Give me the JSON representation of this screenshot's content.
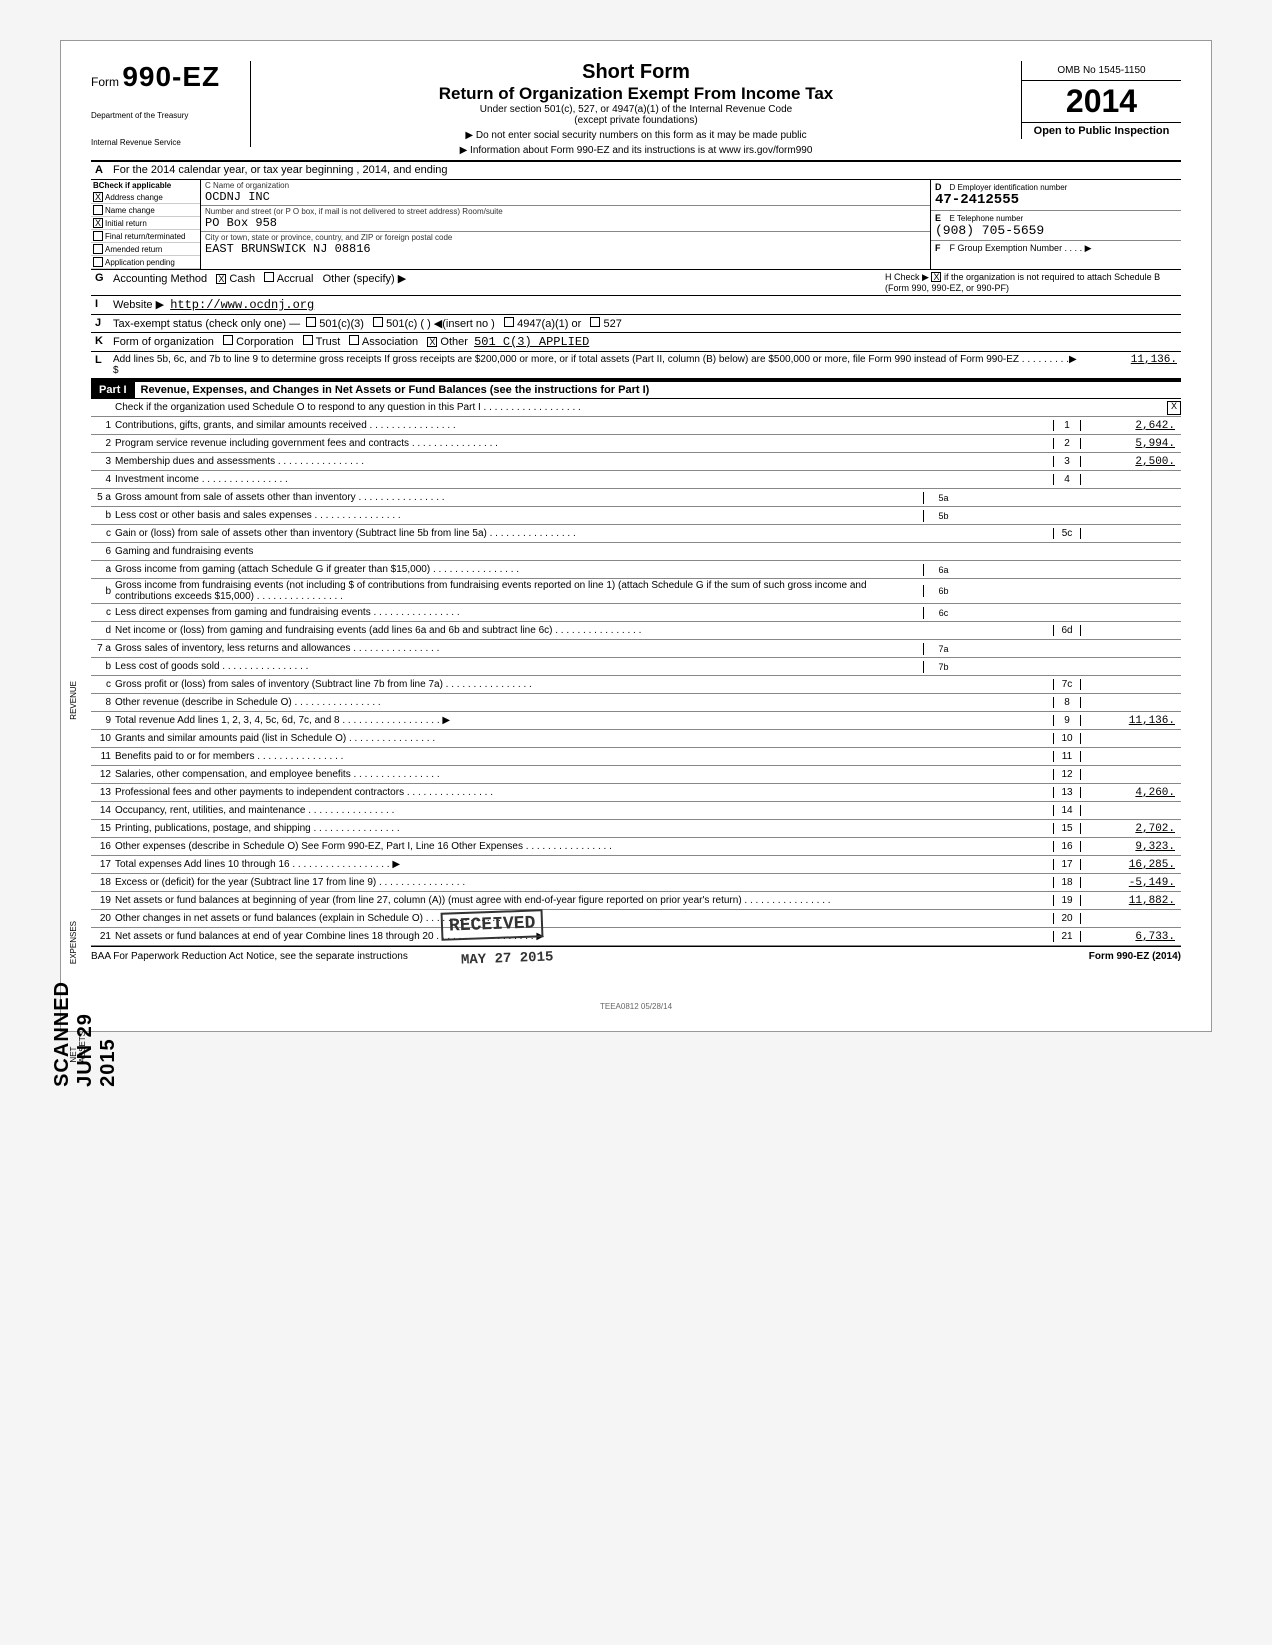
{
  "header": {
    "form_word": "Form",
    "form_number": "990-EZ",
    "dept1": "Department of the Treasury",
    "dept2": "Internal Revenue Service",
    "title_short": "Short Form",
    "title_main": "Return of Organization Exempt From Income Tax",
    "subtitle1": "Under section 501(c), 527, or 4947(a)(1) of the Internal Revenue Code",
    "subtitle2": "(except private foundations)",
    "arrow1": "▶ Do not enter social security numbers on this form as it may be made public",
    "arrow2": "▶ Information about Form 990-EZ and its instructions is at www irs.gov/form990",
    "omb": "OMB No 1545-1150",
    "year": "2014",
    "open_public": "Open to Public Inspection"
  },
  "lineA": "For the 2014 calendar year, or tax year beginning                              , 2014, and ending",
  "sectionB": {
    "header": "Check if applicable",
    "items": [
      {
        "checked": "X",
        "label": "Address change"
      },
      {
        "checked": "",
        "label": "Name change"
      },
      {
        "checked": "X",
        "label": "Initial return"
      },
      {
        "checked": "",
        "label": "Final return/terminated"
      },
      {
        "checked": "",
        "label": "Amended return"
      },
      {
        "checked": "",
        "label": "Application pending"
      }
    ]
  },
  "sectionC": {
    "name_label": "C  Name of organization",
    "name": "OCDNJ INC",
    "addr_label": "Number and street (or P O box, if mail is not delivered to street address)                Room/suite",
    "addr": "PO Box 958",
    "city_label": "City or town, state or province, country, and ZIP or foreign postal code",
    "city": "EAST BRUNSWICK                                  NJ   08816"
  },
  "sectionD": {
    "label": "D  Employer identification number",
    "value": "47-2412555"
  },
  "sectionE": {
    "label": "E  Telephone number",
    "value": "(908) 705-5659"
  },
  "sectionF": {
    "label": "F  Group Exemption Number . . . . ▶",
    "value": ""
  },
  "lineG": {
    "label": "Accounting Method",
    "cash_chk": "X",
    "cash": "Cash",
    "accrual_chk": "",
    "accrual": "Accrual",
    "other": "Other (specify) ▶"
  },
  "lineH": {
    "text": "H  Check ▶",
    "chk": "X",
    "rest": "if the organization is not required to attach Schedule B (Form 990, 990-EZ, or 990-PF)"
  },
  "lineI": {
    "label": "Website ▶",
    "value": "http://www.ocdnj.org"
  },
  "lineJ": {
    "label": "Tax-exempt status (check only one) —",
    "opt1": "501(c)(3)",
    "opt2": "501(c) (      ) ◀(insert no )",
    "opt3": "4947(a)(1) or",
    "opt4": "527"
  },
  "lineK": {
    "label": "Form of organization",
    "opts": [
      "Corporation",
      "Trust",
      "Association"
    ],
    "other_chk": "X",
    "other": "Other",
    "other_val": "501 C(3) APPLIED"
  },
  "lineL": {
    "text": "Add lines 5b, 6c, and 7b to line 9 to determine gross receipts  If gross receipts are $200,000 or more, or if total assets (Part II, column (B) below) are $500,000 or more, file Form 990 instead of Form 990-EZ . . . . . . . . .▶ $",
    "value": "11,136."
  },
  "part1": {
    "label": "Part I",
    "title": "Revenue, Expenses, and Changes in Net Assets or Fund Balances (see the instructions for Part I)",
    "check_line": "Check if the organization used Schedule O to respond to any question in this Part I . . . . . . . . . . . . . . . . . .",
    "check_val": "X"
  },
  "lines": [
    {
      "n": "1",
      "text": "Contributions, gifts, grants, and similar amounts received",
      "box": "1",
      "val": "2,642."
    },
    {
      "n": "2",
      "text": "Program service revenue including government fees and contracts",
      "box": "2",
      "val": "5,994."
    },
    {
      "n": "3",
      "text": "Membership dues and assessments",
      "box": "3",
      "val": "2,500."
    },
    {
      "n": "4",
      "text": "Investment income",
      "box": "4",
      "val": ""
    },
    {
      "n": "5 a",
      "text": "Gross amount from sale of assets other than inventory",
      "ibox": "5a",
      "ival": ""
    },
    {
      "n": "b",
      "text": "Less cost or other basis and sales expenses",
      "ibox": "5b",
      "ival": ""
    },
    {
      "n": "c",
      "text": "Gain or (loss) from sale of assets other than inventory (Subtract line 5b from line 5a)",
      "box": "5c",
      "val": ""
    },
    {
      "n": "6",
      "text": "Gaming and fundraising events"
    },
    {
      "n": "a",
      "text": "Gross income from gaming (attach Schedule G if greater than $15,000)",
      "ibox": "6a",
      "ival": ""
    },
    {
      "n": "b",
      "text": "Gross income from fundraising events (not including      $                 of contributions from fundraising events reported on line 1) (attach Schedule G if the sum of such gross income and contributions exceeds $15,000)",
      "ibox": "6b",
      "ival": ""
    },
    {
      "n": "c",
      "text": "Less direct expenses from gaming and fundraising events",
      "ibox": "6c",
      "ival": ""
    },
    {
      "n": "d",
      "text": "Net income or (loss) from gaming and fundraising events (add lines 6a and 6b and subtract line 6c)",
      "box": "6d",
      "val": ""
    },
    {
      "n": "7 a",
      "text": "Gross sales of inventory, less returns and allowances",
      "ibox": "7a",
      "ival": ""
    },
    {
      "n": "b",
      "text": "Less cost of goods sold",
      "ibox": "7b",
      "ival": ""
    },
    {
      "n": "c",
      "text": "Gross profit or (loss) from sales of inventory (Subtract line 7b from line 7a)",
      "box": "7c",
      "val": ""
    },
    {
      "n": "8",
      "text": "Other revenue (describe in Schedule O)",
      "box": "8",
      "val": ""
    },
    {
      "n": "9",
      "text": "Total revenue  Add lines 1, 2, 3, 4, 5c, 6d, 7c, and 8",
      "arrow": "▶",
      "box": "9",
      "val": "11,136."
    },
    {
      "n": "10",
      "text": "Grants and similar amounts paid (list in Schedule O)",
      "box": "10",
      "val": ""
    },
    {
      "n": "11",
      "text": "Benefits paid to or for members",
      "box": "11",
      "val": ""
    },
    {
      "n": "12",
      "text": "Salaries, other compensation, and employee benefits",
      "box": "12",
      "val": ""
    },
    {
      "n": "13",
      "text": "Professional fees and other payments to independent contractors",
      "box": "13",
      "val": "4,260."
    },
    {
      "n": "14",
      "text": "Occupancy, rent, utilities, and maintenance",
      "box": "14",
      "val": ""
    },
    {
      "n": "15",
      "text": "Printing, publications, postage, and shipping",
      "box": "15",
      "val": "2,702."
    },
    {
      "n": "16",
      "text": "Other expenses (describe in Schedule O)        See Form 990-EZ, Part I, Line 16 Other Expenses",
      "box": "16",
      "val": "9,323."
    },
    {
      "n": "17",
      "text": "Total expenses  Add lines 10 through 16",
      "arrow": "▶",
      "box": "17",
      "val": "16,285."
    },
    {
      "n": "18",
      "text": "Excess or (deficit) for the year (Subtract line 17 from line 9)",
      "box": "18",
      "val": "-5,149."
    },
    {
      "n": "19",
      "text": "Net assets or fund balances at beginning of year (from line 27, column (A)) (must agree with end-of-year figure reported on prior year's return)",
      "box": "19",
      "val": "11,882."
    },
    {
      "n": "20",
      "text": "Other changes in net assets or fund balances (explain in Schedule O)",
      "box": "20",
      "val": ""
    },
    {
      "n": "21",
      "text": "Net assets or fund balances at end of year  Combine lines 18 through 20",
      "arrow": "▶",
      "box": "21",
      "val": "6,733."
    }
  ],
  "footer": {
    "left": "BAA  For Paperwork Reduction Act Notice, see the separate instructions",
    "center": "TEEA0812  05/28/14",
    "right": "Form 990-EZ (2014)"
  },
  "stamps": {
    "received": "RECEIVED",
    "date": "MAY 27 2015",
    "scanned": "SCANNED  JUN 29 2015"
  },
  "side_labels": {
    "rev": "REVENUE",
    "exp": "EXPENSES",
    "net": "NET ASSETS"
  }
}
